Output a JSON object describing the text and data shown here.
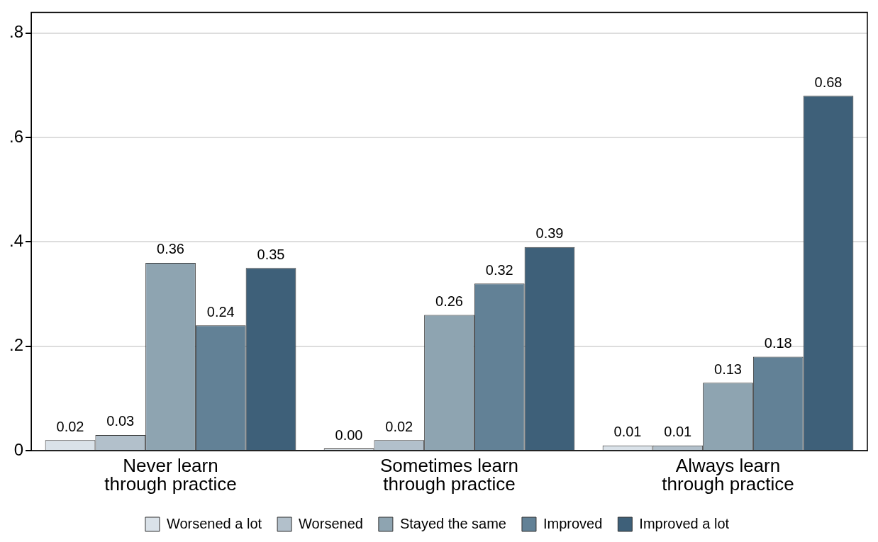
{
  "chart_data": {
    "type": "bar",
    "categories": [
      "Never learn through practice",
      "Sometimes learn through practice",
      "Always learn through practice"
    ],
    "series": [
      {
        "name": "Worsened a lot",
        "color": "#dae2e9",
        "values": [
          0.02,
          0.004,
          0.01
        ],
        "value_labels": [
          "0.02",
          "0.00",
          "0.01"
        ]
      },
      {
        "name": "Worsened",
        "color": "#b2c0cb",
        "values": [
          0.03,
          0.02,
          0.01
        ],
        "value_labels": [
          "0.03",
          "0.02",
          "0.01"
        ]
      },
      {
        "name": "Stayed the same",
        "color": "#8ea4b1",
        "values": [
          0.36,
          0.26,
          0.13
        ],
        "value_labels": [
          "0.36",
          "0.26",
          "0.13"
        ]
      },
      {
        "name": "Improved",
        "color": "#628196",
        "values": [
          0.24,
          0.32,
          0.18
        ],
        "value_labels": [
          "0.24",
          "0.32",
          "0.18"
        ]
      },
      {
        "name": "Improved a lot",
        "color": "#3e6079",
        "values": [
          0.35,
          0.39,
          0.68
        ],
        "value_labels": [
          "0.35",
          "0.39",
          "0.68"
        ]
      }
    ],
    "ylim": [
      0,
      0.84
    ],
    "yticks": [
      {
        "value": 0,
        "label": "0"
      },
      {
        "value": 0.2,
        "label": ".2"
      },
      {
        "value": 0.4,
        "label": ".4"
      },
      {
        "value": 0.6,
        "label": ".6"
      },
      {
        "value": 0.8,
        "label": ".8"
      }
    ],
    "grid": "y",
    "legend": "bottom"
  }
}
